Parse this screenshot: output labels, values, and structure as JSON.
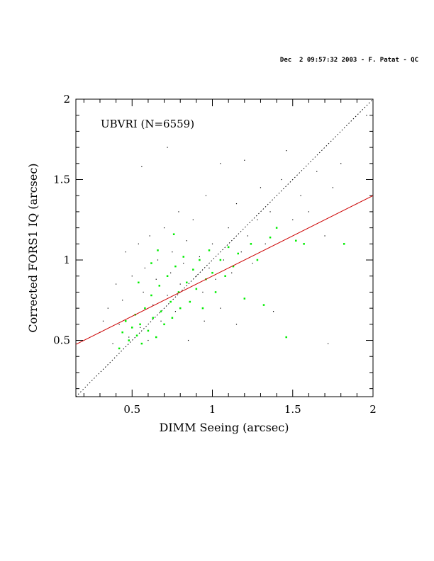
{
  "header": {
    "stamp": "Dec  2 09:57:32 2003 - F. Patat - QC"
  },
  "chart_data": {
    "type": "scatter",
    "title": "",
    "annotation": "UBVRI   (N=6559)",
    "xlabel": "DIMM Seeing (arcsec)",
    "ylabel": "Corrected FORS1 IQ (arcsec)",
    "xlim": [
      0.15,
      2.0
    ],
    "ylim": [
      0.15,
      2.0
    ],
    "xticks": [
      {
        "value": 0.5,
        "label": "0.5"
      },
      {
        "value": 1.0,
        "label": "1"
      },
      {
        "value": 1.5,
        "label": "1.5"
      },
      {
        "value": 2.0,
        "label": "2"
      }
    ],
    "yticks": [
      {
        "value": 0.5,
        "label": "0.5"
      },
      {
        "value": 1.0,
        "label": "1"
      },
      {
        "value": 1.5,
        "label": "1.5"
      },
      {
        "value": 2.0,
        "label": "2"
      }
    ],
    "grid": false,
    "reference_line": {
      "style": "dotted",
      "slope": 1.0,
      "intercept": 0.0,
      "color": "#000000"
    },
    "fit_line": {
      "style": "solid",
      "slope": 0.5,
      "intercept": 0.4,
      "color": "#cc0000"
    },
    "series": [
      {
        "color": "#000000",
        "count": 6559,
        "points": [
          [
            0.3,
            0.55
          ],
          [
            0.32,
            0.62
          ],
          [
            0.35,
            0.7
          ],
          [
            0.38,
            0.48
          ],
          [
            0.4,
            0.85
          ],
          [
            0.42,
            0.6
          ],
          [
            0.44,
            0.75
          ],
          [
            0.46,
            1.05
          ],
          [
            0.48,
            0.52
          ],
          [
            0.5,
            0.9
          ],
          [
            0.52,
            0.66
          ],
          [
            0.54,
            1.1
          ],
          [
            0.55,
            0.58
          ],
          [
            0.57,
            0.8
          ],
          [
            0.58,
            0.95
          ],
          [
            0.6,
            0.5
          ],
          [
            0.61,
            1.15
          ],
          [
            0.63,
            0.72
          ],
          [
            0.65,
            0.88
          ],
          [
            0.66,
            1.0
          ],
          [
            0.68,
            0.62
          ],
          [
            0.7,
            1.2
          ],
          [
            0.72,
            0.78
          ],
          [
            0.74,
            0.92
          ],
          [
            0.75,
            1.05
          ],
          [
            0.77,
            0.68
          ],
          [
            0.79,
            1.3
          ],
          [
            0.8,
            0.85
          ],
          [
            0.82,
            0.98
          ],
          [
            0.84,
            1.12
          ],
          [
            0.86,
            0.74
          ],
          [
            0.88,
            1.25
          ],
          [
            0.9,
            0.9
          ],
          [
            0.92,
            1.02
          ],
          [
            0.94,
            0.8
          ],
          [
            0.96,
            1.4
          ],
          [
            0.98,
            0.95
          ],
          [
            1.0,
            1.1
          ],
          [
            1.02,
            0.88
          ],
          [
            1.05,
            1.6
          ],
          [
            1.07,
            1.0
          ],
          [
            1.1,
            1.2
          ],
          [
            1.12,
            0.92
          ],
          [
            1.15,
            1.35
          ],
          [
            1.18,
            1.05
          ],
          [
            1.2,
            1.62
          ],
          [
            1.22,
            1.15
          ],
          [
            1.25,
            0.98
          ],
          [
            1.28,
            1.25
          ],
          [
            1.3,
            1.45
          ],
          [
            1.33,
            1.1
          ],
          [
            1.36,
            1.3
          ],
          [
            1.4,
            1.2
          ],
          [
            1.43,
            1.5
          ],
          [
            1.46,
            1.68
          ],
          [
            1.5,
            1.25
          ],
          [
            1.55,
            1.4
          ],
          [
            1.6,
            1.3
          ],
          [
            1.65,
            1.55
          ],
          [
            1.7,
            1.15
          ],
          [
            1.75,
            1.45
          ],
          [
            1.8,
            1.6
          ],
          [
            1.9,
            1.35
          ],
          [
            1.96,
            1.9
          ],
          [
            0.72,
            1.7
          ],
          [
            0.56,
            1.58
          ],
          [
            0.95,
            0.62
          ],
          [
            1.05,
            0.7
          ],
          [
            1.15,
            0.6
          ],
          [
            0.85,
            0.5
          ],
          [
            1.72,
            0.48
          ],
          [
            1.38,
            0.68
          ]
        ]
      },
      {
        "color": "#00ee00",
        "count": 0,
        "points": [
          [
            0.42,
            0.45
          ],
          [
            0.44,
            0.55
          ],
          [
            0.46,
            0.62
          ],
          [
            0.48,
            0.5
          ],
          [
            0.5,
            0.58
          ],
          [
            0.52,
            0.66
          ],
          [
            0.53,
            0.53
          ],
          [
            0.55,
            0.6
          ],
          [
            0.56,
            0.48
          ],
          [
            0.58,
            0.7
          ],
          [
            0.6,
            0.56
          ],
          [
            0.62,
            0.78
          ],
          [
            0.63,
            0.64
          ],
          [
            0.65,
            0.52
          ],
          [
            0.67,
            0.84
          ],
          [
            0.68,
            0.68
          ],
          [
            0.7,
            0.6
          ],
          [
            0.72,
            0.9
          ],
          [
            0.74,
            0.74
          ],
          [
            0.75,
            0.64
          ],
          [
            0.77,
            0.96
          ],
          [
            0.79,
            0.8
          ],
          [
            0.8,
            0.7
          ],
          [
            0.82,
            1.02
          ],
          [
            0.84,
            0.86
          ],
          [
            0.86,
            0.74
          ],
          [
            0.88,
            0.94
          ],
          [
            0.9,
            0.82
          ],
          [
            0.92,
            1.0
          ],
          [
            0.94,
            0.7
          ],
          [
            0.96,
            0.88
          ],
          [
            0.98,
            1.06
          ],
          [
            1.0,
            0.92
          ],
          [
            1.02,
            0.8
          ],
          [
            1.05,
            1.0
          ],
          [
            1.08,
            0.9
          ],
          [
            1.1,
            1.08
          ],
          [
            1.13,
            0.96
          ],
          [
            1.16,
            1.04
          ],
          [
            1.2,
            0.76
          ],
          [
            1.24,
            1.1
          ],
          [
            1.28,
            1.0
          ],
          [
            1.32,
            0.72
          ],
          [
            1.36,
            1.14
          ],
          [
            1.4,
            1.2
          ],
          [
            1.46,
            0.52
          ],
          [
            1.52,
            1.12
          ],
          [
            1.57,
            1.1
          ],
          [
            1.82,
            1.1
          ],
          [
            0.76,
            1.16
          ],
          [
            0.62,
            0.98
          ],
          [
            0.54,
            0.86
          ],
          [
            0.66,
            1.06
          ]
        ]
      }
    ]
  }
}
